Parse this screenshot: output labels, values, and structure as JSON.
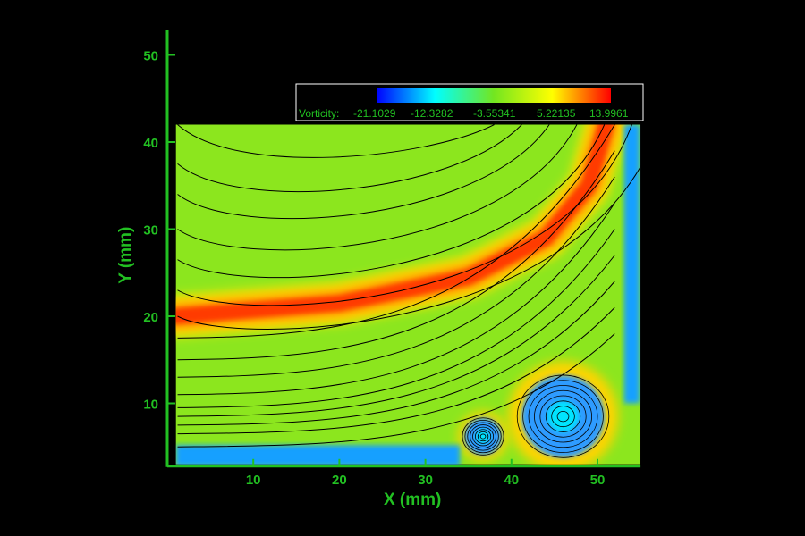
{
  "chart_data": {
    "type": "heatmap",
    "xlabel": "X (mm)",
    "ylabel": "Y (mm)",
    "xlim": [
      1,
      55
    ],
    "ylim": [
      3,
      42
    ],
    "axis_ylim": [
      2,
      52
    ],
    "x_ticks": [
      10,
      20,
      30,
      40,
      50
    ],
    "y_ticks": [
      10,
      20,
      30,
      40,
      50
    ],
    "legend": {
      "label": "Vorticity:",
      "values": [
        "-21.1029",
        "-12.3282",
        "-3.55341",
        "5.22135",
        "13.9961"
      ],
      "range": [
        -21.1029,
        13.9961
      ],
      "placement": "top-right"
    },
    "features": [
      {
        "name": "shear-layer",
        "sign": "positive",
        "path": [
          [
            1,
            20
          ],
          [
            20,
            21.5
          ],
          [
            35,
            24.5
          ],
          [
            44,
            29
          ],
          [
            49,
            35
          ],
          [
            51,
            42
          ]
        ]
      },
      {
        "name": "main-vortex",
        "sign": "negative",
        "center": [
          46,
          8.5
        ],
        "radius": 4
      },
      {
        "name": "secondary-vortex",
        "sign": "negative",
        "center": [
          36.7,
          6.2
        ],
        "radius": 1.8
      },
      {
        "name": "wall-layer-bottom",
        "sign": "negative",
        "y": 4
      },
      {
        "name": "wall-layer-right",
        "sign": "negative",
        "x": 54
      }
    ]
  },
  "colors": {
    "axis": "#22c022",
    "background": "#000000",
    "field_base": "#8ce61e",
    "colormap": [
      "#0000ff",
      "#00ffff",
      "#73e620",
      "#ffff00",
      "#ff0000"
    ]
  }
}
